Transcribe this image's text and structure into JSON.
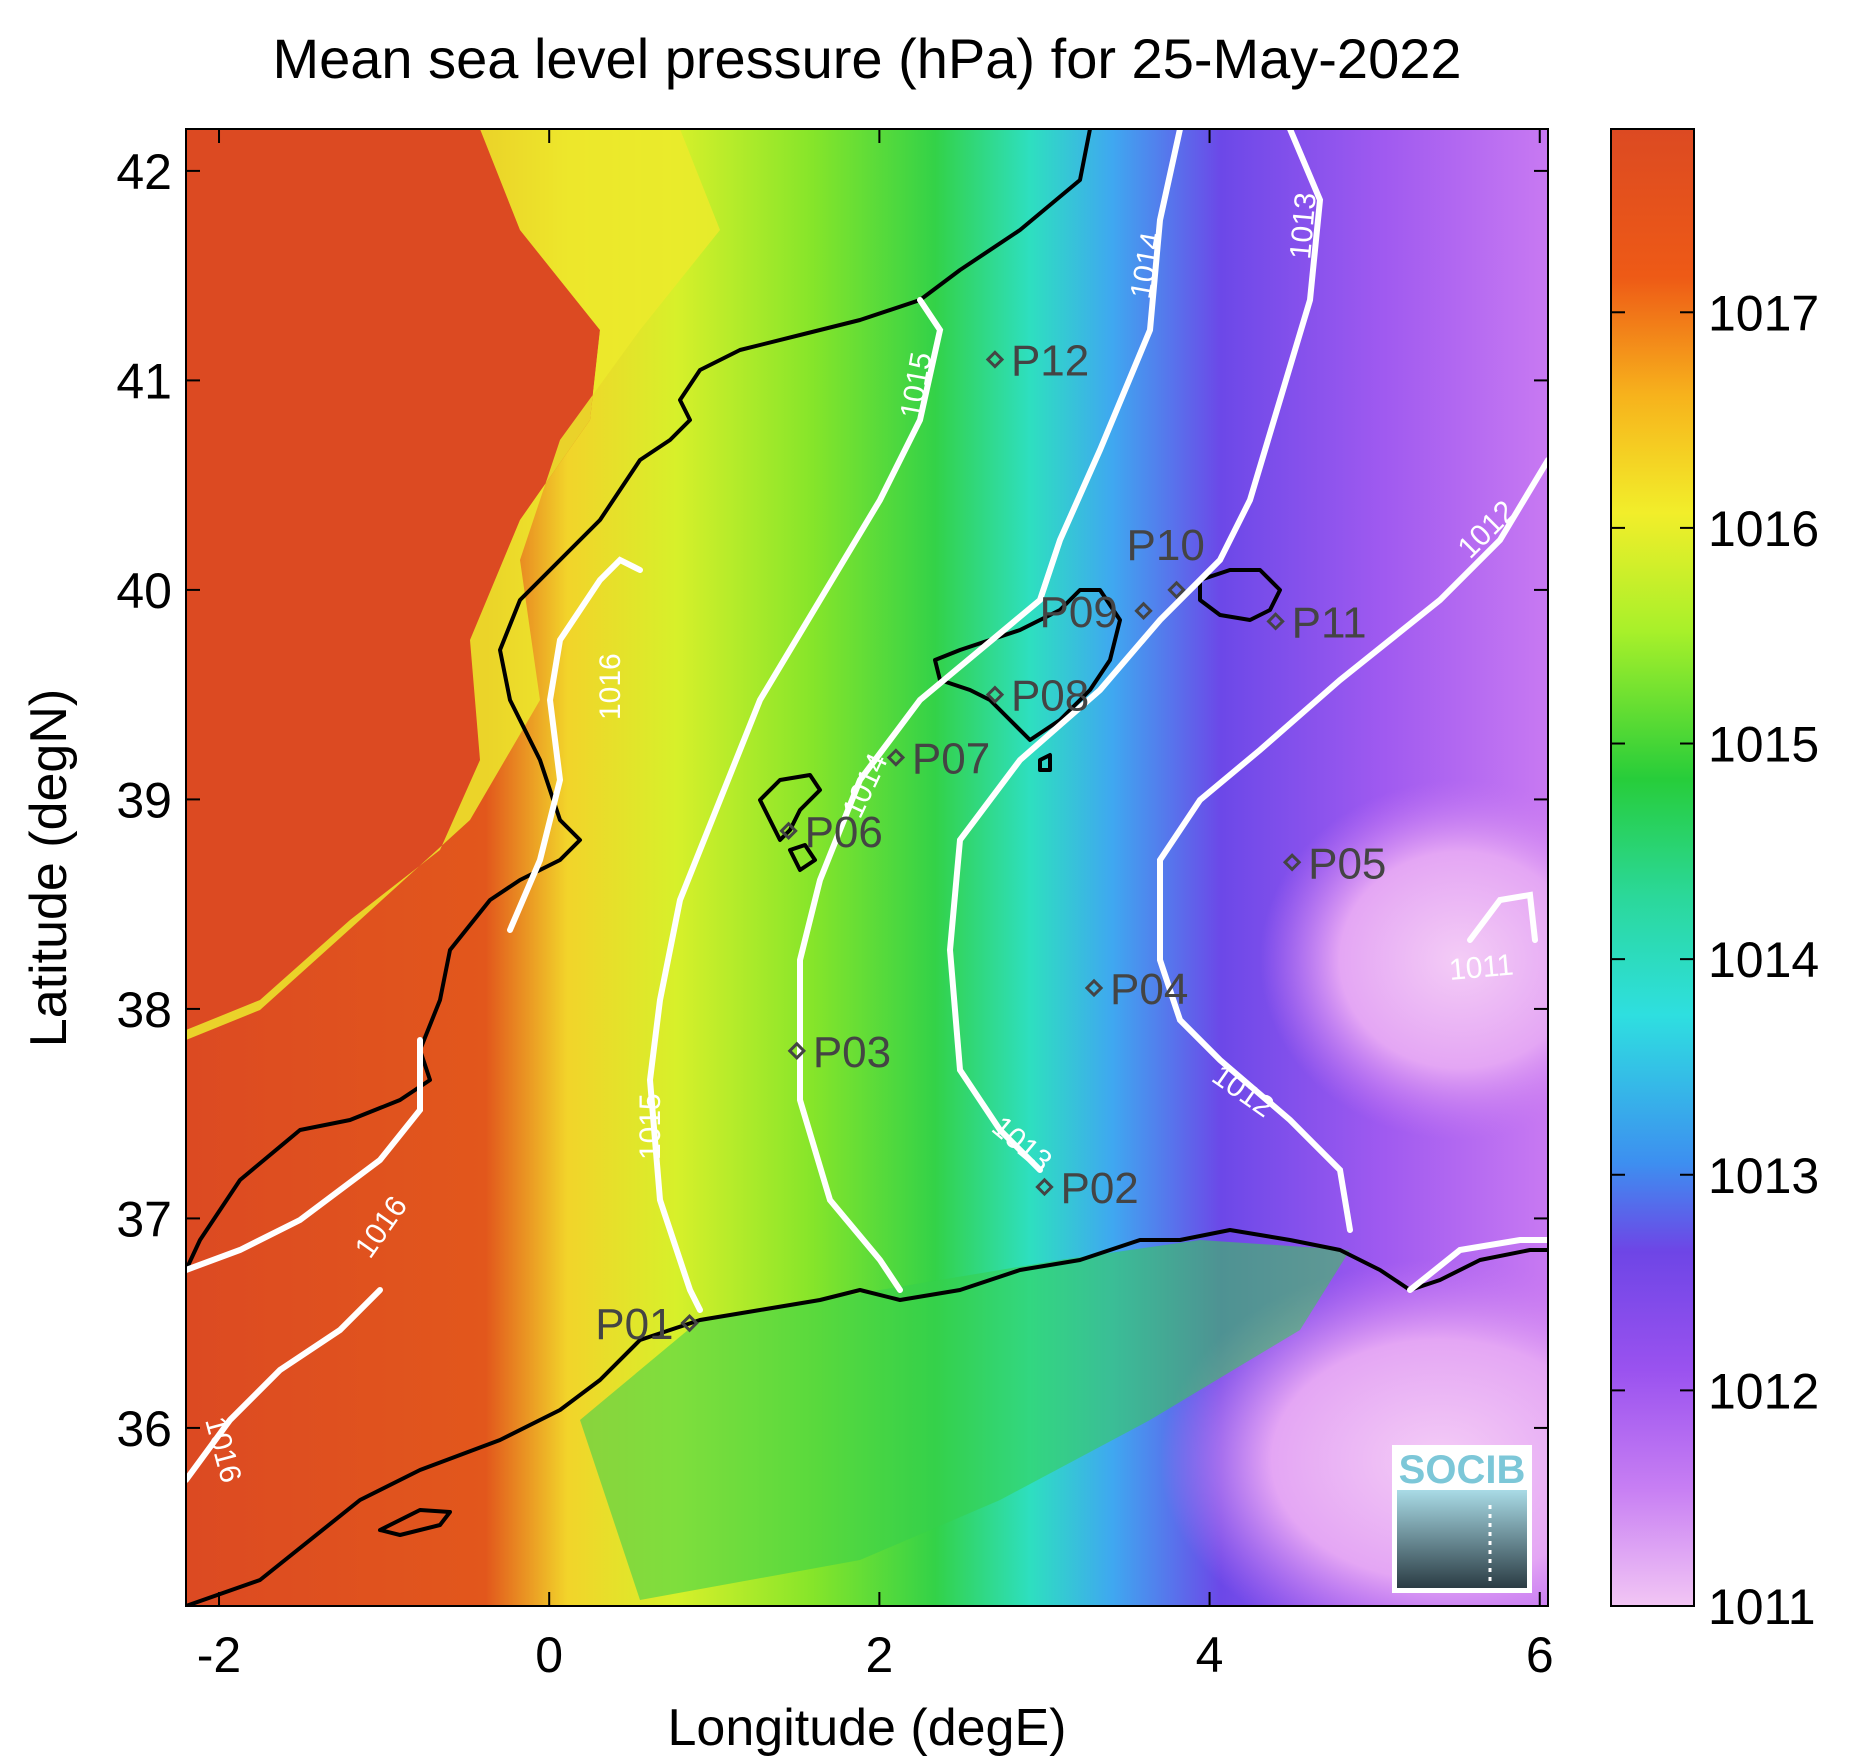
{
  "title": "Mean sea level pressure (hPa) for 25-May-2022",
  "map": {
    "xlabel": "Longitude (degE)",
    "ylabel": "Latitude (degN)",
    "xlim": [
      -2.2,
      6.05
    ],
    "ylim": [
      35.15,
      42.2
    ],
    "xticks": [
      -2,
      0,
      2,
      4,
      6
    ],
    "yticks": [
      36,
      37,
      38,
      39,
      40,
      41,
      42
    ],
    "colorbar": {
      "range": [
        1011,
        1017.85
      ],
      "ticks": [
        1011,
        1012,
        1013,
        1014,
        1015,
        1016,
        1017
      ],
      "colors": [
        "#f2c6f4",
        "#b56af2",
        "#7a44e6",
        "#3d8ff0",
        "#2edfe0",
        "#27cd62",
        "#3bd42a",
        "#a8f02a",
        "#f2ee2a",
        "#f7b21c",
        "#ee5a16",
        "#dc4a22"
      ]
    },
    "stations": [
      {
        "name": "P01",
        "lon": 0.85,
        "lat": 36.5
      },
      {
        "name": "P02",
        "lon": 3.0,
        "lat": 37.15
      },
      {
        "name": "P03",
        "lon": 1.5,
        "lat": 37.8
      },
      {
        "name": "P04",
        "lon": 3.3,
        "lat": 38.1
      },
      {
        "name": "P05",
        "lon": 4.5,
        "lat": 38.7
      },
      {
        "name": "P06",
        "lon": 1.45,
        "lat": 38.85
      },
      {
        "name": "P07",
        "lon": 2.1,
        "lat": 39.2
      },
      {
        "name": "P08",
        "lon": 2.7,
        "lat": 39.5
      },
      {
        "name": "P09",
        "lon": 3.6,
        "lat": 39.9
      },
      {
        "name": "P10",
        "lon": 3.8,
        "lat": 40.0
      },
      {
        "name": "P11",
        "lon": 4.4,
        "lat": 39.85
      },
      {
        "name": "P12",
        "lon": 2.7,
        "lat": 41.1
      }
    ],
    "contour_labels": [
      "1016",
      "1016",
      "1016",
      "1015",
      "1015",
      "1014",
      "1014",
      "1013",
      "1013",
      "1012",
      "1012",
      "1011"
    ]
  },
  "logo": {
    "text": "SOCIB"
  }
}
